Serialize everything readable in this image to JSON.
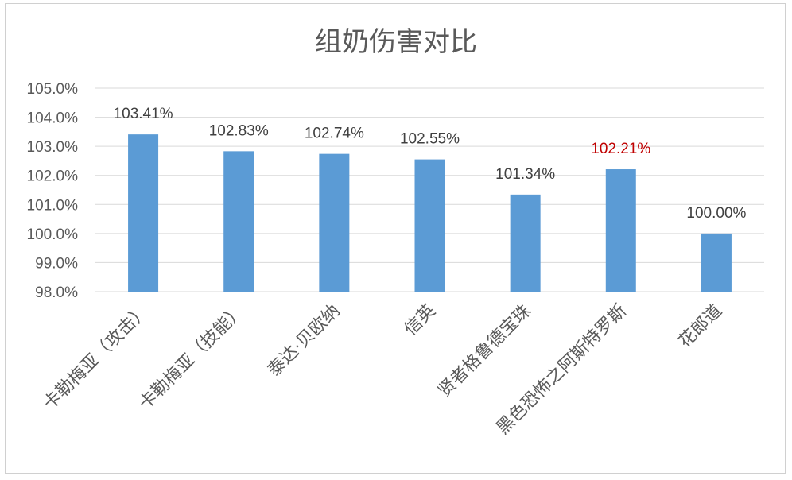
{
  "chart_data": {
    "type": "bar",
    "title": "组奶伤害对比",
    "xlabel": "",
    "ylabel": "",
    "categories": [
      "卡勒梅亚（攻击）",
      "卡勒梅亚（技能）",
      "泰达·贝欧纳",
      "信英",
      "贤者格鲁德宝珠",
      "黑色恐怖之阿斯特罗斯",
      "花郎道"
    ],
    "values": [
      103.41,
      102.83,
      102.74,
      102.55,
      101.34,
      102.21,
      100.0
    ],
    "data_labels": [
      "103.41%",
      "102.83%",
      "102.74%",
      "102.55%",
      "101.34%",
      "102.21%",
      "100.00%"
    ],
    "label_colors": [
      "#404040",
      "#404040",
      "#404040",
      "#404040",
      "#404040",
      "#c00000",
      "#404040"
    ],
    "ylim": [
      98.0,
      105.0
    ],
    "yticks": [
      "98.0%",
      "99.0%",
      "100.0%",
      "101.0%",
      "102.0%",
      "103.0%",
      "104.0%",
      "105.0%"
    ],
    "ytick_values": [
      98,
      99,
      100,
      101,
      102,
      103,
      104,
      105
    ],
    "bar_color": "#5b9bd5",
    "grid": true,
    "legend": "none"
  }
}
